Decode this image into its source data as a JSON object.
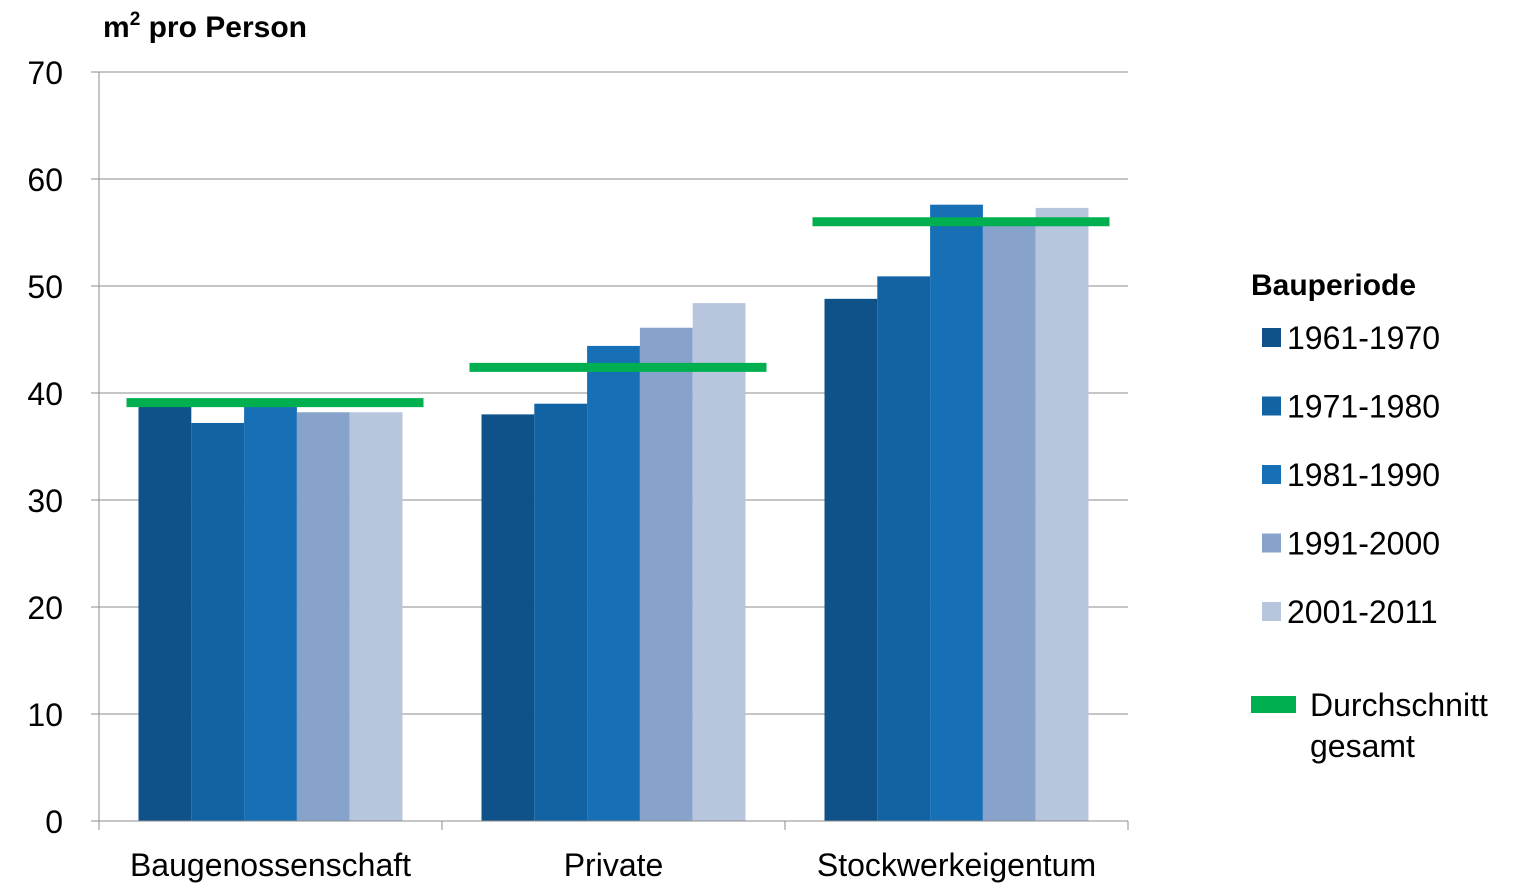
{
  "chart_data": {
    "type": "bar",
    "ylabel": "m² pro Person",
    "ylabel_main": "m",
    "ylabel_sup": "2",
    "ylabel_rest": " pro Person",
    "xlabel": "",
    "ylim": [
      0,
      70
    ],
    "yticks": [
      0,
      10,
      20,
      30,
      40,
      50,
      60,
      70
    ],
    "grid": true,
    "categories": [
      "Baugenossenschaft",
      "Private",
      "Stockwerkeigentum"
    ],
    "series": [
      {
        "name": "1961-1970",
        "color": "#0f5189",
        "values": [
          38.7,
          38.0,
          48.8
        ]
      },
      {
        "name": "1971-1980",
        "color": "#1263a4",
        "values": [
          37.2,
          39.0,
          50.9
        ]
      },
      {
        "name": "1981-1990",
        "color": "#176fb6",
        "values": [
          38.8,
          44.4,
          57.6
        ]
      },
      {
        "name": "1991-2000",
        "color": "#87a3cb",
        "values": [
          38.2,
          46.1,
          56.1
        ]
      },
      {
        "name": "2001-2011",
        "color": "#b8c6dd",
        "values": [
          38.2,
          48.4,
          57.3
        ]
      }
    ],
    "average": {
      "name": "Durchschnitt gesamt",
      "name_lines": [
        "Durchschnitt",
        "gesamt"
      ],
      "color": "#00b050",
      "values": [
        39.1,
        42.4,
        56.0
      ]
    },
    "legend_title": "Bauperiode",
    "legend_position": "right"
  }
}
